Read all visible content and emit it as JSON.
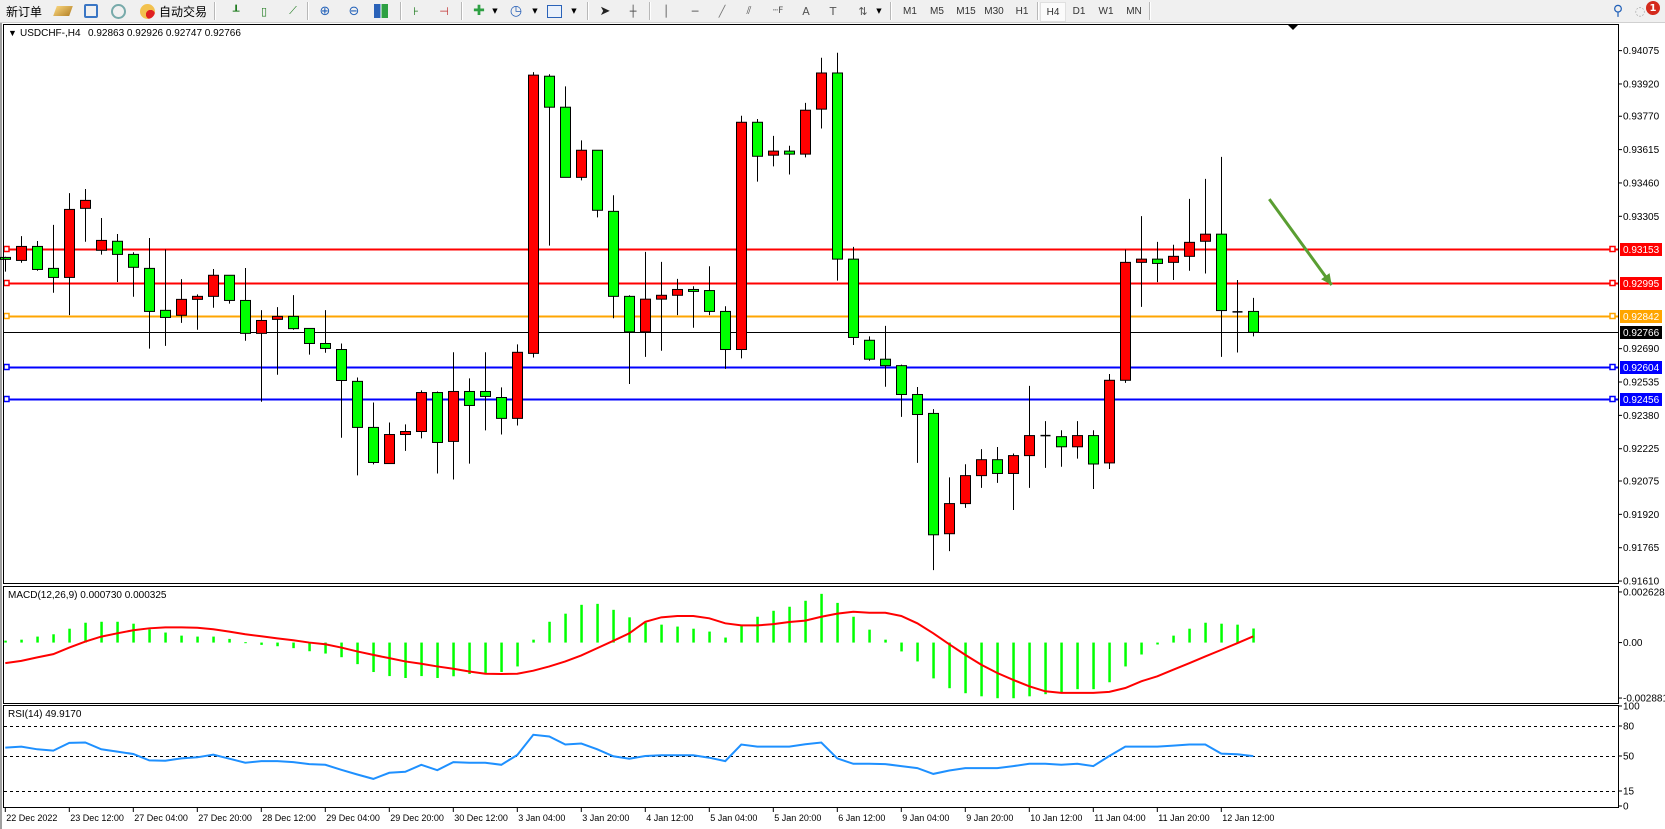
{
  "toolbar": {
    "new_order": "新订单",
    "auto_trading": "自动交易",
    "timeframes": [
      "M1",
      "M5",
      "M15",
      "M30",
      "H1",
      "H4",
      "D1",
      "W1",
      "MN"
    ],
    "active_timeframe": "H4",
    "notification_count": "1",
    "icons": [
      "new-order-icon",
      "gold-bar-icon",
      "terminal-icon",
      "signal-icon",
      "auto-trading-icon",
      "bar-chart-icon",
      "candlestick-chart-icon",
      "line-chart-icon",
      "zoom-in-icon",
      "zoom-out-icon",
      "tile-windows-icon",
      "auto-scroll-icon",
      "chart-shift-icon",
      "indicators-icon",
      "periods-clock-icon",
      "templates-icon",
      "cursor-icon",
      "crosshair-icon",
      "vertical-line-icon",
      "horizontal-line-icon",
      "trend-line-icon",
      "equidistant-channel-icon",
      "fibonacci-icon",
      "text-icon",
      "text-label-icon",
      "arrows-icon",
      "search-icon",
      "chat-icon"
    ]
  },
  "chart_data": [
    {
      "type": "candlestick",
      "symbol_label": "USDCHF-,H4",
      "ohlc_label": "0.92863 0.92926 0.92747 0.92766",
      "ylim": [
        0.91601,
        0.94194
      ],
      "grid": false,
      "up_color": "#ff0000",
      "down_color": "#00ff00",
      "y_ticks": [
        "0.94075",
        "0.93920",
        "0.93770",
        "0.93615",
        "0.93460",
        "0.93305",
        "0.92690",
        "0.92535",
        "0.92380",
        "0.92225",
        "0.92075",
        "0.91920",
        "0.91765",
        "0.91610"
      ],
      "x_labels": [
        "22 Dec 2022",
        "23 Dec 12:00",
        "27 Dec 04:00",
        "27 Dec 20:00",
        "28 Dec 12:00",
        "29 Dec 04:00",
        "29 Dec 20:00",
        "30 Dec 12:00",
        "3 Jan 04:00",
        "3 Jan 20:00",
        "4 Jan 12:00",
        "5 Jan 04:00",
        "5 Jan 20:00",
        "6 Jan 12:00",
        "9 Jan 04:00",
        "9 Jan 20:00",
        "10 Jan 12:00",
        "11 Jan 04:00",
        "11 Jan 20:00",
        "12 Jan 12:00"
      ],
      "x_label_every": 4,
      "horizontal_lines": [
        {
          "price": 0.93153,
          "label": "0.93153",
          "color": "#ff0000"
        },
        {
          "price": 0.92995,
          "label": "0.92995",
          "color": "#ff0000"
        },
        {
          "price": 0.92842,
          "label": "0.92842",
          "color": "#ffa500"
        },
        {
          "price": 0.92766,
          "label": "0.92766",
          "color": "#000000",
          "current_price": true
        },
        {
          "price": 0.92604,
          "label": "0.92604",
          "color": "#0000ff"
        },
        {
          "price": 0.92456,
          "label": "0.92456",
          "color": "#0000ff"
        }
      ],
      "arrow": {
        "from": {
          "index": 79,
          "price": 0.93385
        },
        "to": {
          "index": 82.9,
          "price": 0.92986
        },
        "color": "#5a9e32"
      },
      "ohlc": [
        [
          0.93114,
          0.93117,
          0.93048,
          0.93105
        ],
        [
          0.931,
          0.93213,
          0.93089,
          0.93165
        ],
        [
          0.93165,
          0.9319,
          0.93052,
          0.93058
        ],
        [
          0.93063,
          0.93265,
          0.9295,
          0.93021
        ],
        [
          0.93021,
          0.93413,
          0.92846,
          0.93337
        ],
        [
          0.93342,
          0.93432,
          0.93187,
          0.93379
        ],
        [
          0.93147,
          0.93297,
          0.93127,
          0.93193
        ],
        [
          0.93189,
          0.93223,
          0.93,
          0.93128
        ],
        [
          0.93128,
          0.93138,
          0.92931,
          0.93068
        ],
        [
          0.93063,
          0.93204,
          0.9269,
          0.92863
        ],
        [
          0.92868,
          0.93151,
          0.92703,
          0.92835
        ],
        [
          0.92845,
          0.93013,
          0.9281,
          0.92919
        ],
        [
          0.92919,
          0.92942,
          0.92778,
          0.92933
        ],
        [
          0.92933,
          0.9306,
          0.9288,
          0.93031
        ],
        [
          0.93031,
          0.93031,
          0.92899,
          0.92914
        ],
        [
          0.92914,
          0.93065,
          0.92727,
          0.92761
        ],
        [
          0.92761,
          0.92869,
          0.92443,
          0.92821
        ],
        [
          0.92826,
          0.92883,
          0.92569,
          0.9284
        ],
        [
          0.9284,
          0.92939,
          0.92778,
          0.92783
        ],
        [
          0.92784,
          0.92784,
          0.92662,
          0.92714
        ],
        [
          0.92714,
          0.92869,
          0.92671,
          0.92691
        ],
        [
          0.92686,
          0.92714,
          0.92276,
          0.92542
        ],
        [
          0.92538,
          0.92556,
          0.92101,
          0.92324
        ],
        [
          0.92324,
          0.9244,
          0.92152,
          0.92161
        ],
        [
          0.92156,
          0.92347,
          0.92156,
          0.92291
        ],
        [
          0.92291,
          0.92338,
          0.92215,
          0.92305
        ],
        [
          0.92305,
          0.92496,
          0.92273,
          0.92486
        ],
        [
          0.92486,
          0.92491,
          0.9211,
          0.92254
        ],
        [
          0.92259,
          0.92673,
          0.92082,
          0.92491
        ],
        [
          0.92491,
          0.92552,
          0.92156,
          0.92426
        ],
        [
          0.92491,
          0.92673,
          0.9231,
          0.92468
        ],
        [
          0.92463,
          0.9251,
          0.92291,
          0.92366
        ],
        [
          0.92366,
          0.9271,
          0.92333,
          0.92673
        ],
        [
          0.92668,
          0.93975,
          0.92649,
          0.93961
        ],
        [
          0.93956,
          0.93965,
          0.93169,
          0.93812
        ],
        [
          0.93812,
          0.93909,
          0.93486,
          0.93486
        ],
        [
          0.93486,
          0.93658,
          0.93472,
          0.93612
        ],
        [
          0.93612,
          0.93612,
          0.933,
          0.93333
        ],
        [
          0.93328,
          0.93403,
          0.92831,
          0.92933
        ],
        [
          0.92933,
          0.92938,
          0.92526,
          0.92768
        ],
        [
          0.92768,
          0.9314,
          0.92652,
          0.9292
        ],
        [
          0.9292,
          0.93093,
          0.9268,
          0.92938
        ],
        [
          0.92938,
          0.93014,
          0.92846,
          0.92965
        ],
        [
          0.92965,
          0.9298,
          0.92787,
          0.92956
        ],
        [
          0.9296,
          0.93073,
          0.92846,
          0.92863
        ],
        [
          0.92863,
          0.92887,
          0.92596,
          0.92686
        ],
        [
          0.92686,
          0.93772,
          0.92645,
          0.93742
        ],
        [
          0.93742,
          0.93757,
          0.93466,
          0.93584
        ],
        [
          0.93589,
          0.93679,
          0.93537,
          0.93608
        ],
        [
          0.93608,
          0.93633,
          0.93499,
          0.93594
        ],
        [
          0.93594,
          0.93832,
          0.93579,
          0.93798
        ],
        [
          0.93803,
          0.94042,
          0.93713,
          0.93971
        ],
        [
          0.93971,
          0.94065,
          0.93006,
          0.93106
        ],
        [
          0.93106,
          0.93163,
          0.92707,
          0.92742
        ],
        [
          0.92729,
          0.92747,
          0.92634,
          0.92641
        ],
        [
          0.92641,
          0.92796,
          0.92513,
          0.92611
        ],
        [
          0.92611,
          0.92616,
          0.92373,
          0.92477
        ],
        [
          0.92477,
          0.92512,
          0.92159,
          0.92384
        ],
        [
          0.92389,
          0.92409,
          0.91661,
          0.91825
        ],
        [
          0.9183,
          0.92092,
          0.91749,
          0.9197
        ],
        [
          0.9197,
          0.92153,
          0.9195,
          0.921
        ],
        [
          0.921,
          0.92223,
          0.92043,
          0.92174
        ],
        [
          0.92174,
          0.92233,
          0.92066,
          0.9211
        ],
        [
          0.9211,
          0.92203,
          0.9194,
          0.92193
        ],
        [
          0.92193,
          0.92517,
          0.92043,
          0.92286
        ],
        [
          0.92286,
          0.92353,
          0.92136,
          0.92286
        ],
        [
          0.92281,
          0.92311,
          0.92141,
          0.92234
        ],
        [
          0.92234,
          0.92353,
          0.92179,
          0.92286
        ],
        [
          0.92286,
          0.92311,
          0.92038,
          0.92154
        ],
        [
          0.92159,
          0.92572,
          0.92131,
          0.92543
        ],
        [
          0.92543,
          0.9315,
          0.92531,
          0.93091
        ],
        [
          0.93091,
          0.93306,
          0.92884,
          0.93106
        ],
        [
          0.93106,
          0.93186,
          0.92999,
          0.93086
        ],
        [
          0.93091,
          0.93173,
          0.93009,
          0.93119
        ],
        [
          0.93119,
          0.93386,
          0.93052,
          0.93184
        ],
        [
          0.93189,
          0.93479,
          0.93039,
          0.93222
        ],
        [
          0.93222,
          0.93581,
          0.92652,
          0.92867
        ],
        [
          0.92861,
          0.93009,
          0.92672,
          0.92861
        ],
        [
          0.92863,
          0.92926,
          0.92747,
          0.92766
        ]
      ]
    },
    {
      "type": "bar",
      "label": "MACD(12,26,9) 0.000730 0.000325",
      "ylim": [
        -0.003138,
        0.002885
      ],
      "y_ticks": [
        {
          "value": 0.002628,
          "label": "0.002628"
        },
        {
          "value": 0,
          "label": "0.00"
        },
        {
          "value": -0.002881,
          "label": "-0.002881"
        }
      ],
      "histogram_color": "#00ff00",
      "signal_color": "#ff0000",
      "histogram": [
        0.0001,
        0.00015,
        0.00031,
        0.00043,
        0.00072,
        0.00103,
        0.00108,
        0.00108,
        0.00098,
        0.00069,
        0.00052,
        0.00036,
        0.00031,
        0.00031,
        0.00019,
        2e-05,
        -0.00012,
        -0.00019,
        -0.00029,
        -0.00045,
        -0.00057,
        -0.00076,
        -0.00112,
        -0.00153,
        -0.00174,
        -0.00184,
        -0.00174,
        -0.00184,
        -0.00175,
        -0.00163,
        -0.00158,
        -0.00153,
        -0.00124,
        0.00015,
        0.00108,
        0.0015,
        0.00196,
        0.00201,
        0.0017,
        0.00131,
        0.00103,
        0.00093,
        0.00083,
        0.00072,
        0.00057,
        0.00026,
        0.00088,
        0.00134,
        0.00165,
        0.00186,
        0.00217,
        0.00253,
        0.00206,
        0.00134,
        0.00067,
        0.00015,
        -0.00046,
        -0.00098,
        -0.00186,
        -0.00237,
        -0.00263,
        -0.00279,
        -0.00289,
        -0.00289,
        -0.00279,
        -0.00268,
        -0.00258,
        -0.00242,
        -0.00242,
        -0.00206,
        -0.00124,
        -0.00062,
        -0.0001,
        0.00036,
        0.00072,
        0.00103,
        0.00098,
        0.00093,
        0.00073
      ],
      "signal": [
        -0.00107,
        -0.00095,
        -0.00077,
        -0.0006,
        -0.00026,
        5e-05,
        0.00031,
        0.00048,
        0.00064,
        0.00074,
        0.00079,
        0.00079,
        0.00077,
        0.00069,
        0.00057,
        0.00043,
        0.00033,
        0.00022,
        0.00012,
        0,
        -9e-05,
        -0.00026,
        -0.00046,
        -0.00064,
        -0.00081,
        -0.00098,
        -0.0011,
        -0.00124,
        -0.00136,
        -0.0015,
        -0.00162,
        -0.00163,
        -0.00162,
        -0.00146,
        -0.00124,
        -0.00098,
        -0.00067,
        -0.00029,
        9e-05,
        0.00048,
        0.00108,
        0.00131,
        0.00138,
        0.00138,
        0.00126,
        0.001,
        0.00089,
        0.00089,
        0.00096,
        0.00107,
        0.00114,
        0.00134,
        0.0015,
        0.0016,
        0.00155,
        0.00155,
        0.00138,
        0.001,
        0.00048,
        -9e-05,
        -0.00064,
        -0.00115,
        -0.00158,
        -0.00194,
        -0.00227,
        -0.00253,
        -0.00261,
        -0.00261,
        -0.00261,
        -0.00256,
        -0.00236,
        -0.00201,
        -0.00175,
        -0.00141,
        -0.00107,
        -0.00072,
        -0.00038,
        -3e-05,
        0.000325
      ]
    },
    {
      "type": "line",
      "label": "RSI(14) 49.9170",
      "ylim": [
        0,
        100
      ],
      "y_ticks": [
        "100",
        "80",
        "50",
        "15",
        "0"
      ],
      "levels": [
        80,
        50,
        15
      ],
      "line_color": "#1e90ff",
      "values": [
        58.4,
        59.4,
        56.7,
        55.4,
        63.1,
        63.5,
        56.7,
        54.4,
        52.0,
        45.6,
        45.3,
        47.6,
        48.7,
        51.3,
        47.3,
        43.3,
        44.9,
        44.9,
        43.9,
        41.9,
        41.2,
        36.2,
        31.5,
        27.1,
        33.2,
        34.2,
        41.2,
        35.8,
        43.9,
        43.3,
        43.3,
        41.2,
        51.0,
        71.2,
        69.5,
        61.5,
        62.5,
        56.7,
        49.7,
        47.3,
        50.0,
        50.7,
        50.7,
        50.7,
        48.3,
        44.9,
        61.5,
        59.4,
        59.4,
        59.4,
        61.8,
        63.5,
        47.6,
        42.2,
        42.2,
        41.9,
        39.9,
        37.9,
        32.1,
        35.5,
        37.9,
        37.9,
        37.9,
        39.9,
        42.2,
        42.2,
        41.2,
        42.2,
        39.9,
        50.0,
        59.4,
        59.4,
        59.4,
        60.4,
        61.5,
        61.5,
        52.4,
        51.7,
        49.917
      ]
    }
  ]
}
